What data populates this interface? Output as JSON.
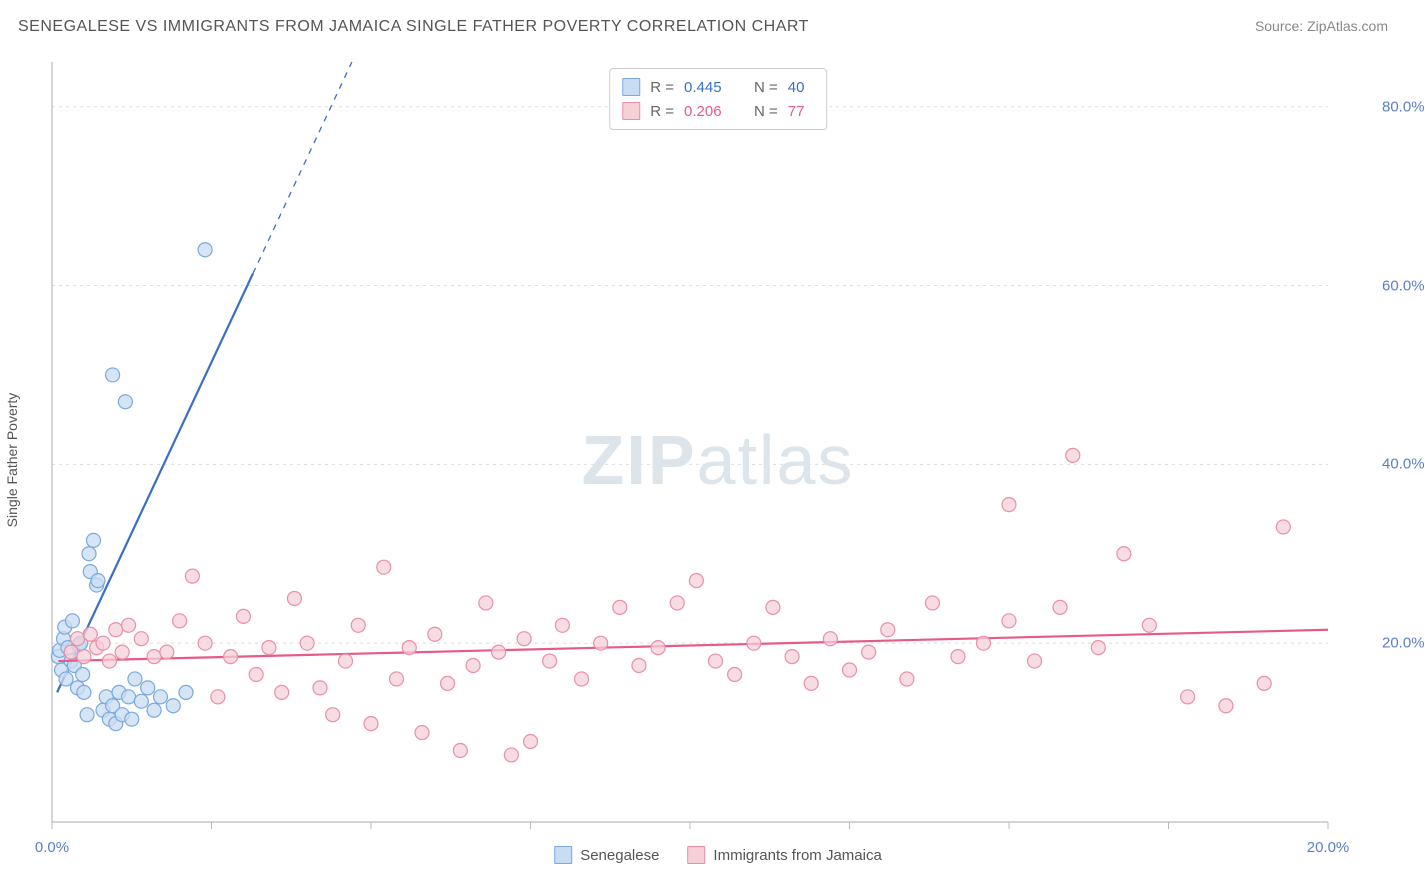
{
  "header": {
    "title": "SENEGALESE VS IMMIGRANTS FROM JAMAICA SINGLE FATHER POVERTY CORRELATION CHART",
    "source_prefix": "Source: ",
    "source_name": "ZipAtlas.com"
  },
  "chart": {
    "type": "scatter",
    "y_axis_label": "Single Father Poverty",
    "watermark_zip": "ZIP",
    "watermark_atlas": "atlas",
    "xlim": [
      0,
      20
    ],
    "ylim": [
      0,
      85
    ],
    "x_ticks": [
      0,
      2.5,
      5,
      7.5,
      10,
      12.5,
      15,
      17.5,
      20
    ],
    "x_tick_labels": {
      "0": "0.0%",
      "20": "20.0%"
    },
    "y_ticks": [
      20,
      40,
      60,
      80
    ],
    "y_tick_labels": {
      "20": "20.0%",
      "40": "40.0%",
      "60": "60.0%",
      "80": "80.0%"
    },
    "grid_color": "#dcdcdc",
    "axis_color": "#bbbbbb",
    "tick_color": "#bbbbbb",
    "background_color": "#ffffff",
    "series": [
      {
        "name": "Senegalese",
        "marker_fill": "#c8dcf3",
        "marker_stroke": "#7aa9dc",
        "marker_radius": 7,
        "line_color": "#3b6fc4",
        "line_width": 2.2,
        "r_value": "0.445",
        "n_value": "40",
        "r_color": "#3b6fc4",
        "n_color": "#3b6fc4",
        "trend": {
          "x1": 0.08,
          "y1": 14.5,
          "x2": 4.7,
          "y2": 85
        },
        "trend_solid_end_x": 3.15,
        "points": [
          [
            0.1,
            18.5
          ],
          [
            0.12,
            19.2
          ],
          [
            0.15,
            17.0
          ],
          [
            0.18,
            20.5
          ],
          [
            0.2,
            21.8
          ],
          [
            0.22,
            16.0
          ],
          [
            0.25,
            19.5
          ],
          [
            0.3,
            18.0
          ],
          [
            0.32,
            22.5
          ],
          [
            0.35,
            17.5
          ],
          [
            0.4,
            15.0
          ],
          [
            0.42,
            19.8
          ],
          [
            0.45,
            20.0
          ],
          [
            0.48,
            16.5
          ],
          [
            0.5,
            14.5
          ],
          [
            0.55,
            12.0
          ],
          [
            0.58,
            30.0
          ],
          [
            0.6,
            28.0
          ],
          [
            0.65,
            31.5
          ],
          [
            0.7,
            26.5
          ],
          [
            0.72,
            27.0
          ],
          [
            0.8,
            12.5
          ],
          [
            0.85,
            14.0
          ],
          [
            0.9,
            11.5
          ],
          [
            0.95,
            13.0
          ],
          [
            1.0,
            11.0
          ],
          [
            1.05,
            14.5
          ],
          [
            1.1,
            12.0
          ],
          [
            1.2,
            14.0
          ],
          [
            1.25,
            11.5
          ],
          [
            1.3,
            16.0
          ],
          [
            1.4,
            13.5
          ],
          [
            1.5,
            15.0
          ],
          [
            1.6,
            12.5
          ],
          [
            1.7,
            14.0
          ],
          [
            1.9,
            13.0
          ],
          [
            0.95,
            50.0
          ],
          [
            1.15,
            47.0
          ],
          [
            2.4,
            64.0
          ],
          [
            2.1,
            14.5
          ]
        ]
      },
      {
        "name": "Immigrants from Jamaica",
        "marker_fill": "#f6d0d9",
        "marker_stroke": "#e98fa6",
        "marker_radius": 7,
        "line_color": "#e65a88",
        "line_width": 2.2,
        "r_value": "0.206",
        "n_value": "77",
        "r_color": "#e65a88",
        "n_color": "#e65a88",
        "trend": {
          "x1": 0.1,
          "y1": 18.0,
          "x2": 20,
          "y2": 21.5
        },
        "trend_solid_end_x": 20,
        "points": [
          [
            0.3,
            19.0
          ],
          [
            0.4,
            20.5
          ],
          [
            0.5,
            18.5
          ],
          [
            0.6,
            21.0
          ],
          [
            0.7,
            19.5
          ],
          [
            0.8,
            20.0
          ],
          [
            0.9,
            18.0
          ],
          [
            1.0,
            21.5
          ],
          [
            1.1,
            19.0
          ],
          [
            1.2,
            22.0
          ],
          [
            1.4,
            20.5
          ],
          [
            1.6,
            18.5
          ],
          [
            1.8,
            19.0
          ],
          [
            2.0,
            22.5
          ],
          [
            2.2,
            27.5
          ],
          [
            2.4,
            20.0
          ],
          [
            2.6,
            14.0
          ],
          [
            2.8,
            18.5
          ],
          [
            3.0,
            23.0
          ],
          [
            3.2,
            16.5
          ],
          [
            3.4,
            19.5
          ],
          [
            3.6,
            14.5
          ],
          [
            3.8,
            25.0
          ],
          [
            4.0,
            20.0
          ],
          [
            4.2,
            15.0
          ],
          [
            4.4,
            12.0
          ],
          [
            4.6,
            18.0
          ],
          [
            4.8,
            22.0
          ],
          [
            5.0,
            11.0
          ],
          [
            5.2,
            28.5
          ],
          [
            5.4,
            16.0
          ],
          [
            5.6,
            19.5
          ],
          [
            5.8,
            10.0
          ],
          [
            6.0,
            21.0
          ],
          [
            6.2,
            15.5
          ],
          [
            6.4,
            8.0
          ],
          [
            6.6,
            17.5
          ],
          [
            6.8,
            24.5
          ],
          [
            7.0,
            19.0
          ],
          [
            7.2,
            7.5
          ],
          [
            7.4,
            20.5
          ],
          [
            7.5,
            9.0
          ],
          [
            7.8,
            18.0
          ],
          [
            8.0,
            22.0
          ],
          [
            8.3,
            16.0
          ],
          [
            8.6,
            20.0
          ],
          [
            8.9,
            24.0
          ],
          [
            9.2,
            17.5
          ],
          [
            9.5,
            19.5
          ],
          [
            9.8,
            24.5
          ],
          [
            10.1,
            27.0
          ],
          [
            10.4,
            18.0
          ],
          [
            10.7,
            16.5
          ],
          [
            11.0,
            20.0
          ],
          [
            11.3,
            24.0
          ],
          [
            11.6,
            18.5
          ],
          [
            11.9,
            15.5
          ],
          [
            12.2,
            20.5
          ],
          [
            12.5,
            17.0
          ],
          [
            12.8,
            19.0
          ],
          [
            13.1,
            21.5
          ],
          [
            13.4,
            16.0
          ],
          [
            13.8,
            24.5
          ],
          [
            14.2,
            18.5
          ],
          [
            14.6,
            20.0
          ],
          [
            15.0,
            22.5
          ],
          [
            15.0,
            35.5
          ],
          [
            15.4,
            18.0
          ],
          [
            15.8,
            24.0
          ],
          [
            16.0,
            41.0
          ],
          [
            16.4,
            19.5
          ],
          [
            16.8,
            30.0
          ],
          [
            17.2,
            22.0
          ],
          [
            17.8,
            14.0
          ],
          [
            18.4,
            13.0
          ],
          [
            19.0,
            15.5
          ],
          [
            19.3,
            33.0
          ]
        ]
      }
    ],
    "legend_top_labels": {
      "r": "R =",
      "n": "N ="
    }
  }
}
